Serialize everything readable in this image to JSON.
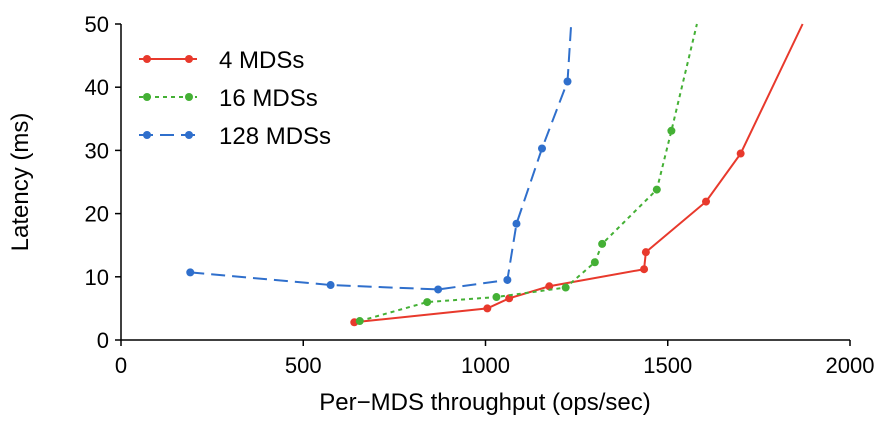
{
  "chart_data": {
    "type": "line",
    "title": "",
    "xlabel": "Per−MDS throughput (ops/sec)",
    "ylabel": "Latency (ms)",
    "xlim": [
      0,
      2000
    ],
    "ylim": [
      0,
      50
    ],
    "xticks": [
      0,
      500,
      1000,
      1500,
      2000
    ],
    "yticks": [
      0,
      10,
      20,
      30,
      40,
      50
    ],
    "xtick_labels": [
      "0",
      "500",
      "1000",
      "1500",
      "2000"
    ],
    "ytick_labels": [
      "0",
      "10",
      "20",
      "30",
      "40",
      "50"
    ],
    "grid": false,
    "legend_position": "top-left",
    "series": [
      {
        "name": "4 MDSs",
        "color": "#e8392c",
        "dash": "solid",
        "points": [
          [
            640,
            2.8
          ],
          [
            1005,
            5.0
          ],
          [
            1065,
            6.6
          ],
          [
            1175,
            8.5
          ],
          [
            1435,
            11.2
          ],
          [
            1440,
            13.9
          ],
          [
            1605,
            21.9
          ],
          [
            1700,
            29.5
          ]
        ],
        "tail": [
          1870,
          50
        ]
      },
      {
        "name": "16 MDSs",
        "color": "#44b035",
        "dash": "dotted",
        "points": [
          [
            655,
            3.0
          ],
          [
            840,
            6.0
          ],
          [
            1030,
            6.8
          ],
          [
            1220,
            8.3
          ],
          [
            1300,
            12.3
          ],
          [
            1320,
            15.2
          ],
          [
            1470,
            23.8
          ],
          [
            1510,
            33.1
          ]
        ],
        "tail": [
          1580,
          50
        ]
      },
      {
        "name": "128 MDSs",
        "color": "#2f6fcc",
        "dash": "dashed",
        "points": [
          [
            190,
            10.7
          ],
          [
            575,
            8.7
          ],
          [
            870,
            8.0
          ],
          [
            1060,
            9.5
          ],
          [
            1085,
            18.4
          ],
          [
            1155,
            30.3
          ],
          [
            1225,
            40.9
          ]
        ],
        "tail": [
          1235,
          50
        ]
      }
    ]
  }
}
